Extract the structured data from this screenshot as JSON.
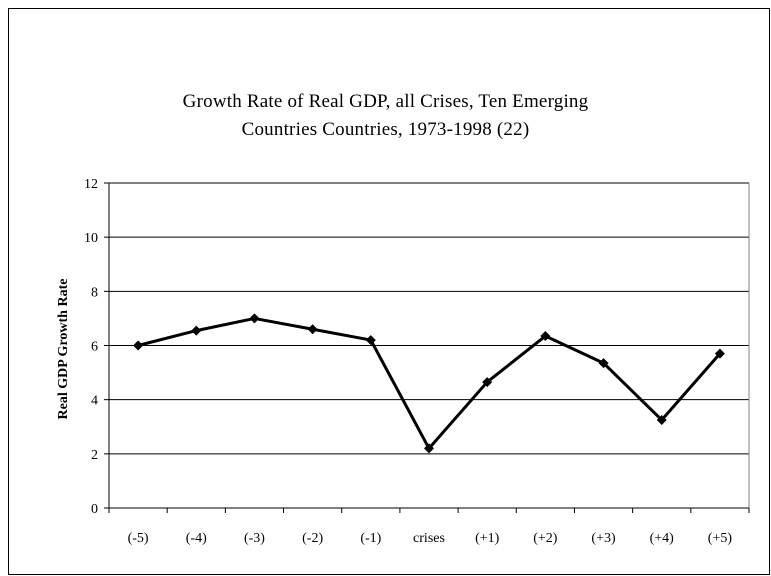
{
  "chart_data": {
    "type": "line",
    "title_line1": "Growth Rate of Real GDP, all Crises, Ten Emerging",
    "title_line2": "Countries Countries, 1973-1998 (22)",
    "xlabel": "",
    "ylabel": "Real GDP Growth Rate",
    "categories": [
      "(-5)",
      "(-4)",
      "(-3)",
      "(-2)",
      "(-1)",
      "crises",
      "(+1)",
      "(+2)",
      "(+3)",
      "(+4)",
      "(+5)"
    ],
    "values": [
      6.0,
      6.55,
      7.0,
      6.6,
      6.2,
      2.2,
      4.65,
      6.35,
      5.35,
      3.25,
      5.7
    ],
    "ylim": [
      0,
      12
    ],
    "yticks": [
      "0",
      "2",
      "4",
      "6",
      "8",
      "10",
      "12"
    ],
    "grid": true,
    "legend": "none",
    "line_color": "#000000",
    "marker": "diamond"
  }
}
